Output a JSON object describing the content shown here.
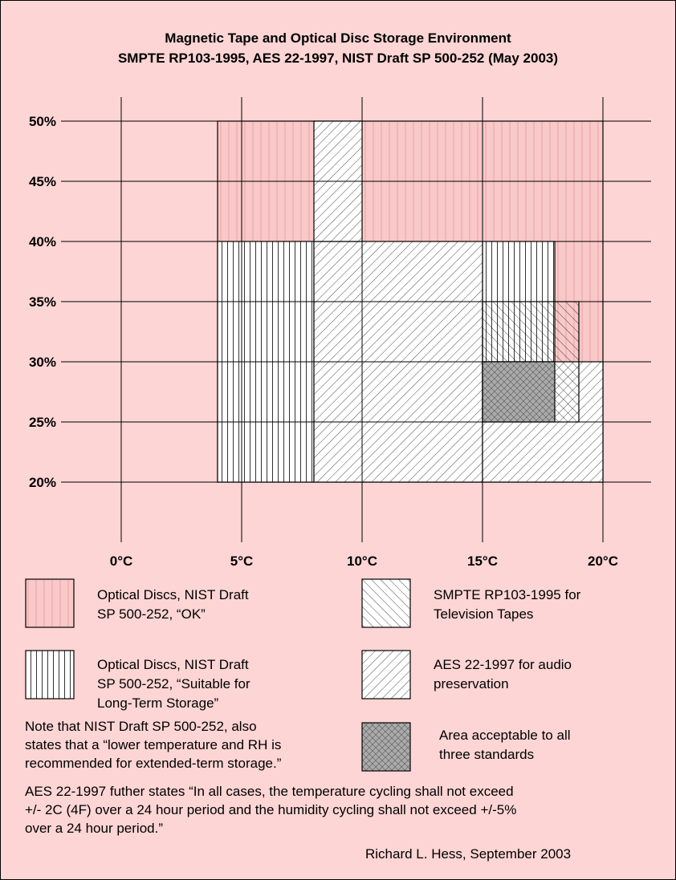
{
  "colors": {
    "background": "#fdd5d5",
    "nist_ok_fill": "#f9c8c8",
    "overlap_fill": "#aaaaaa",
    "line": "#000000"
  },
  "chart_data": {
    "type": "area",
    "title": "Magnetic Tape and Optical Disc Storage Environment",
    "subtitle": "SMPTE RP103-1995, AES 22-1997, NIST Draft SP 500-252 (May 2003)",
    "xlabel": "",
    "ylabel": "",
    "x_ticks": [
      "0°C",
      "5°C",
      "10°C",
      "15°C",
      "20°C"
    ],
    "y_ticks": [
      "50%",
      "45%",
      "40%",
      "35%",
      "30%",
      "25%",
      "20%"
    ],
    "xlim": [
      -2,
      22
    ],
    "ylim": [
      19,
      51
    ],
    "grid": true,
    "regions": [
      {
        "series": "nist_ok",
        "x": [
          4,
          20
        ],
        "y": [
          20,
          50
        ]
      },
      {
        "series": "nist_long_term",
        "x": [
          4,
          8
        ],
        "y": [
          20,
          40
        ]
      },
      {
        "series": "nist_long_term",
        "x": [
          15,
          18
        ],
        "y": [
          30,
          40
        ]
      },
      {
        "series": "aes",
        "x": [
          8,
          15
        ],
        "y": [
          20,
          40
        ]
      },
      {
        "series": "aes",
        "x": [
          8,
          10
        ],
        "y": [
          40,
          50
        ]
      },
      {
        "series": "aes",
        "x": [
          15,
          20
        ],
        "y": [
          20,
          30
        ]
      },
      {
        "series": "smpte",
        "x": [
          15,
          19
        ],
        "y": [
          25,
          35
        ]
      },
      {
        "series": "all_three",
        "x": [
          15,
          18
        ],
        "y": [
          25,
          30
        ]
      }
    ],
    "legend": [
      {
        "id": "nist_ok",
        "lines": [
          "Optical Discs, NIST Draft",
          "SP 500-252, “OK”"
        ]
      },
      {
        "id": "nist_long_term",
        "lines": [
          "Optical Discs, NIST Draft",
          "SP 500-252, “Suitable for",
          "Long-Term Storage”"
        ]
      },
      {
        "id": "smpte",
        "lines": [
          "SMPTE RP103-1995 for",
          "Television Tapes"
        ]
      },
      {
        "id": "aes",
        "lines": [
          "AES 22-1997 for audio",
          "preservation"
        ]
      },
      {
        "id": "all_three",
        "lines": [
          "Area acceptable to all",
          "three standards"
        ]
      }
    ],
    "annotations": {
      "nist_note": [
        "Note that NIST Draft SP 500-252, also",
        "states that a “lower temperature and RH is",
        "recommended for extended-term storage.”"
      ],
      "aes_note": [
        "AES 22-1997 futher states “In all cases, the temperature cycling shall not exceed",
        "+/- 2C (4F) over a 24 hour period and the humidity cycling shall not exceed +/-5%",
        "over a 24 hour period.”"
      ],
      "credit": "Richard L. Hess, September 2003"
    }
  }
}
